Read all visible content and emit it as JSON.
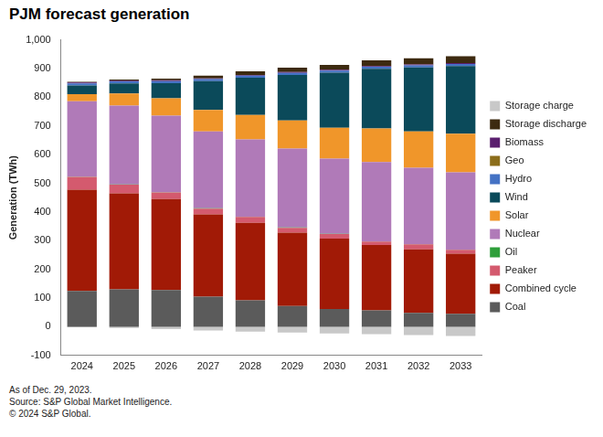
{
  "chart_data": {
    "type": "bar",
    "title": "PJM forecast generation",
    "y_label": "Generation (TWh)",
    "footnotes": [
      "As of Dec. 29, 2023.",
      "Source: S&P Global Market Intelligence.",
      "© 2024 S&P Global."
    ],
    "categories": [
      "2024",
      "2025",
      "2026",
      "2027",
      "2028",
      "2029",
      "2030",
      "2031",
      "2032",
      "2033"
    ],
    "stacked": true,
    "grid": false,
    "legend": "right",
    "ylim": [
      -100,
      1000
    ],
    "yticks": [
      -100,
      0,
      100,
      200,
      300,
      400,
      500,
      600,
      700,
      800,
      900,
      {
        "value": 1000,
        "label": "1,000"
      }
    ],
    "series": [
      {
        "name": "Coal",
        "color": "#5b5b5b",
        "values": [
          125,
          130,
          128,
          105,
          92,
          72,
          62,
          57,
          48,
          45
        ]
      },
      {
        "name": "Combined cycle",
        "color": "#a11a06",
        "values": [
          353,
          335,
          317,
          287,
          270,
          256,
          245,
          228,
          222,
          210
        ]
      },
      {
        "name": "Peaker",
        "color": "#d45a6e",
        "values": [
          44,
          30,
          23,
          20,
          21,
          17,
          16,
          12,
          17,
          13
        ]
      },
      {
        "name": "Oil",
        "color": "#2e9e3a",
        "values": [
          1,
          1,
          1,
          1,
          1,
          1,
          1,
          1,
          1,
          1
        ]
      },
      {
        "name": "Nuclear",
        "color": "#b07ab8",
        "values": [
          263,
          275,
          267,
          268,
          269,
          275,
          262,
          276,
          266,
          269
        ]
      },
      {
        "name": "Solar",
        "color": "#f0962a",
        "values": [
          25,
          42,
          60,
          75,
          85,
          98,
          108,
          117,
          127,
          135
        ]
      },
      {
        "name": "Wind",
        "color": "#0b4a5a",
        "values": [
          30,
          35,
          53,
          100,
          130,
          159,
          192,
          208,
          223,
          236
        ]
      },
      {
        "name": "Hydro",
        "color": "#4472c4",
        "values": [
          7,
          7,
          7,
          7,
          7,
          7,
          7,
          7,
          7,
          7
        ]
      },
      {
        "name": "Geo",
        "color": "#8b6d1a",
        "values": [
          0,
          0,
          0,
          0,
          0,
          0,
          0,
          0,
          0,
          0
        ]
      },
      {
        "name": "Biomass",
        "color": "#5a1e6e",
        "values": [
          3,
          3,
          3,
          3,
          3,
          3,
          3,
          3,
          3,
          3
        ]
      },
      {
        "name": "Storage discharge",
        "color": "#3d2a10",
        "values": [
          3,
          4,
          6,
          9,
          12,
          15,
          17,
          20,
          22,
          24
        ]
      },
      {
        "name": "Storage charge",
        "color": "#c8c8c8",
        "values": [
          -2,
          -4,
          -8,
          -13,
          -17,
          -20,
          -23,
          -26,
          -29,
          -32
        ]
      }
    ]
  }
}
